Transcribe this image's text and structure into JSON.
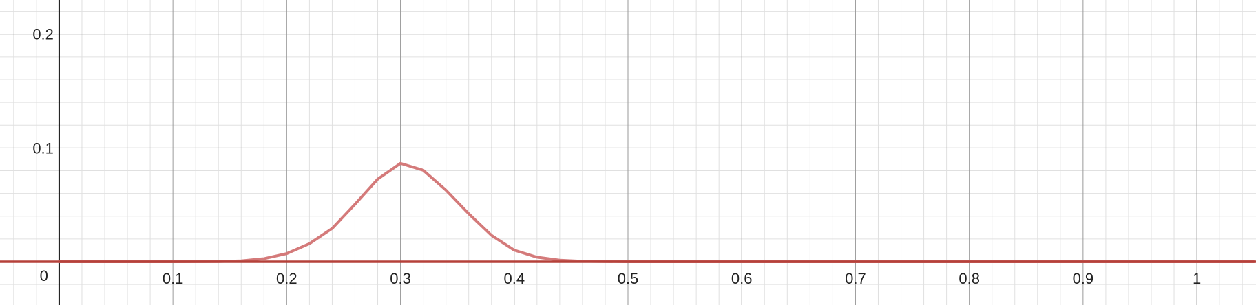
{
  "chart_data": {
    "type": "line",
    "title": "",
    "xlabel": "",
    "ylabel": "",
    "xlim": [
      -0.052,
      1.052
    ],
    "ylim": [
      -0.038,
      0.23
    ],
    "grid": true,
    "grid_minor": true,
    "x_ticks": [
      {
        "value": 0.1,
        "label": "0.1"
      },
      {
        "value": 0.2,
        "label": "0.2"
      },
      {
        "value": 0.3,
        "label": "0.3"
      },
      {
        "value": 0.4,
        "label": "0.4"
      },
      {
        "value": 0.5,
        "label": "0.5"
      },
      {
        "value": 0.6,
        "label": "0.6"
      },
      {
        "value": 0.7,
        "label": "0.7"
      },
      {
        "value": 0.8,
        "label": "0.8"
      },
      {
        "value": 0.9,
        "label": "0.9"
      },
      {
        "value": 1.0,
        "label": "1"
      }
    ],
    "y_ticks": [
      {
        "value": 0.1,
        "label": "0.1"
      },
      {
        "value": 0.2,
        "label": "0.2"
      }
    ],
    "origin_label": "0",
    "series": [
      {
        "color": "#d47a7a",
        "x": [
          0.0,
          0.1,
          0.14,
          0.16,
          0.18,
          0.2,
          0.22,
          0.24,
          0.26,
          0.28,
          0.3,
          0.32,
          0.34,
          0.36,
          0.38,
          0.4,
          0.42,
          0.44,
          0.46,
          0.5,
          0.6,
          1.05
        ],
        "y": [
          0.0,
          0.0,
          0.0002,
          0.0008,
          0.0027,
          0.0072,
          0.0159,
          0.0293,
          0.0505,
          0.0726,
          0.0865,
          0.0804,
          0.0629,
          0.0422,
          0.0232,
          0.0102,
          0.004,
          0.0014,
          0.0004,
          0.0,
          0.0,
          0.0
        ]
      },
      {
        "color": "#b5413a",
        "x": [
          -0.052,
          1.052
        ],
        "y": [
          0.0,
          0.0
        ]
      }
    ]
  }
}
